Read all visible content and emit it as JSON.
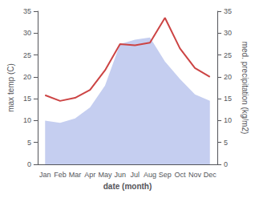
{
  "chart_data": {
    "type": "line",
    "categories": [
      "Jan",
      "Feb",
      "Mar",
      "Apr",
      "May",
      "Jun",
      "Jul",
      "Aug",
      "Sep",
      "Oct",
      "Nov",
      "Dec"
    ],
    "series": [
      {
        "type": "area",
        "color": "#c5cef0",
        "axis": "y2",
        "values": [
          10.0,
          9.5,
          10.5,
          13.0,
          18.0,
          27.5,
          28.5,
          29.0,
          23.5,
          19.5,
          16.0,
          14.5
        ]
      },
      {
        "type": "line",
        "color": "#cc4444",
        "values": [
          15.8,
          14.5,
          15.2,
          17.0,
          21.5,
          27.5,
          27.2,
          27.8,
          33.5,
          26.5,
          22.0,
          20.0
        ]
      }
    ],
    "xlabel": "date (month)",
    "ylabel": "max temp (C)",
    "y2label": "med. precipitation (kg/m2)",
    "ylim": [
      0,
      35
    ],
    "yticks": [
      0,
      5,
      10,
      15,
      20,
      25,
      30,
      35
    ],
    "y2lim": [
      0,
      35
    ],
    "y2ticks": [
      0,
      5,
      10,
      15,
      20,
      25,
      30,
      35
    ],
    "grid": false
  }
}
